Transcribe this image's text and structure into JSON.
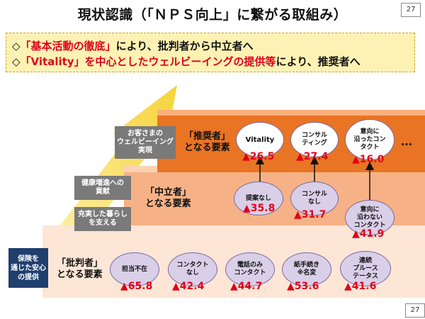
{
  "title": "現状認識（「ＮＰＳ向上」に繋がる取組み）",
  "page_number_top": "27",
  "page_number_bottom": "27",
  "banner": {
    "line1": {
      "mark": "◇",
      "highlight": "「基本活動の徹底」",
      "rest": "により、批判者から中立者へ"
    },
    "line2": {
      "mark": "◇",
      "highlight": "「Vitality」を中心としたウェルビーイングの提供等",
      "rest": "により、推奨者へ"
    }
  },
  "side_boxes": {
    "customer_wellbeing": "お客さまの\nウェルビーイング\n実現",
    "health_contribution": "健康増進への\n貢献",
    "fulfilling_life": "充実した暮らし\nを支える",
    "security": "保険を\n通じた安心\nの提供"
  },
  "tiers": {
    "promoter": {
      "label": "「推奨者」\nとなる要素"
    },
    "neutral": {
      "label": "「中立者」\nとなる要素"
    },
    "critic": {
      "label": "「批判者」\nとなる要素"
    }
  },
  "items": {
    "vitality": {
      "text": "Vitality",
      "value": "▲26.5"
    },
    "consulting": {
      "text": "コンサル\nティング",
      "value": "▲27.4"
    },
    "intent_contact": {
      "text": "意向に\n沿ったコン\nタクト",
      "value": "▲16.0"
    },
    "no_proposal": {
      "text": "提案なし",
      "value": "▲35.8"
    },
    "no_consulting": {
      "text": "コンサル\nなし",
      "value": "▲31.7"
    },
    "non_intent_contact": {
      "text": "意向に\n沿わない\nコンタクト",
      "value": "▲41.9"
    },
    "absent_agent": {
      "text": "担当不在",
      "value": "▲65.8"
    },
    "no_contact": {
      "text": "コンタクト\nなし",
      "value": "▲42.4"
    },
    "phone_only": {
      "text": "電話のみ\nコンタクト",
      "value": "▲44.7"
    },
    "paperwork": {
      "text": "紙手続き\n※名変",
      "value": "▲53.6"
    },
    "continuous_plus": {
      "text": "連続\nプルース\nテータス",
      "value": "▲41.6"
    }
  },
  "ellipsis": "…"
}
